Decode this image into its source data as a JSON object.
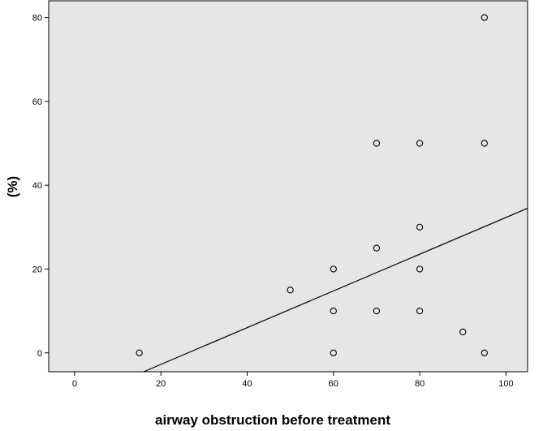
{
  "chart_data": {
    "type": "scatter",
    "title": "",
    "xlabel": "airway obstruction before treatment",
    "ylabel": "(%)",
    "xlim": [
      -6,
      105
    ],
    "ylim": [
      -4.5,
      84
    ],
    "xticks": [
      0,
      20,
      40,
      60,
      80,
      100
    ],
    "yticks": [
      0,
      20,
      40,
      60,
      80
    ],
    "grid": false,
    "series": [
      {
        "x": [
          15,
          50,
          60,
          60,
          60,
          70,
          70,
          70,
          80,
          80,
          80,
          80,
          90,
          95,
          95,
          95
        ],
        "y": [
          0,
          15,
          20,
          10,
          0,
          50,
          25,
          10,
          50,
          30,
          20,
          10,
          5,
          80,
          50,
          0
        ],
        "marker": "open-circle"
      }
    ],
    "fit_line": {
      "type": "linear",
      "points": [
        [
          16,
          -4.5
        ],
        [
          105,
          34.5
        ]
      ]
    },
    "colors": {
      "plot_background": "#e6e6e6",
      "marker": "#000000",
      "line": "#000000"
    }
  }
}
